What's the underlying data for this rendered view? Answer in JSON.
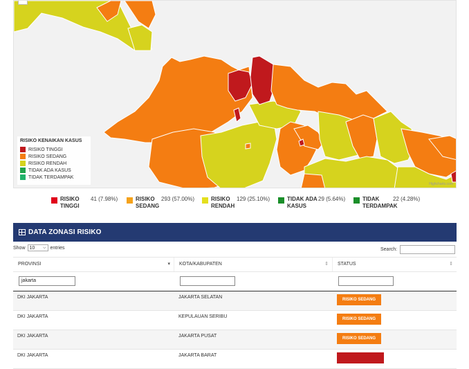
{
  "map": {
    "zoom_label": "−",
    "legend_title": "RISIKO KENAIKAN KASUS",
    "legend_items": [
      {
        "label": "RISIKO TINGGI",
        "color": "#c0191d"
      },
      {
        "label": "RISIKO SEDANG",
        "color": "#f47d12"
      },
      {
        "label": "RISIKO RENDAH",
        "color": "#d6d31e"
      },
      {
        "label": "TIDAK ADA KASUS",
        "color": "#21a34c"
      },
      {
        "label": "TIDAK TERDAMPAK",
        "color": "#20b36a"
      }
    ],
    "credit": "Highcharts.com"
  },
  "stats": [
    {
      "label": "RISIKO TINGGI",
      "value": "41 (7.98%)",
      "color": "#e0001a"
    },
    {
      "label": "RISIKO SEDANG",
      "value": "293 (57.00%)",
      "color": "#f5a21b"
    },
    {
      "label": "RISIKO RENDAH",
      "value": "129 (25.10%)",
      "color": "#e4df1e"
    },
    {
      "label": "TIDAK ADA KASUS",
      "value": "29 (5.64%)",
      "color": "#1a8f2a"
    },
    {
      "label": "TIDAK TERDAMPAK",
      "value": "22 (4.28%)",
      "color": "#1a8f2a"
    }
  ],
  "panel": {
    "title": "DATA ZONASI RISIKO",
    "show_label": "Show",
    "entries_value": "10",
    "entries_label": "entries",
    "search_label": "Search:"
  },
  "table": {
    "columns": [
      "PROVINSI",
      "KOTA/KABUPATEN",
      "STATUS"
    ],
    "filters": [
      "jakarta",
      "",
      ""
    ],
    "rows": [
      {
        "provinsi": "DKI JAKARTA",
        "kota": "JAKARTA SELATAN",
        "status": "RISIKO SEDANG"
      },
      {
        "provinsi": "DKI JAKARTA",
        "kota": "KEPULAUAN SERIBU",
        "status": "RISIKO SEDANG"
      },
      {
        "provinsi": "DKI JAKARTA",
        "kota": "JAKARTA PUSAT",
        "status": "RISIKO SEDANG"
      },
      {
        "provinsi": "DKI JAKARTA",
        "kota": "JAKARTA BARAT",
        "status": ""
      }
    ]
  }
}
